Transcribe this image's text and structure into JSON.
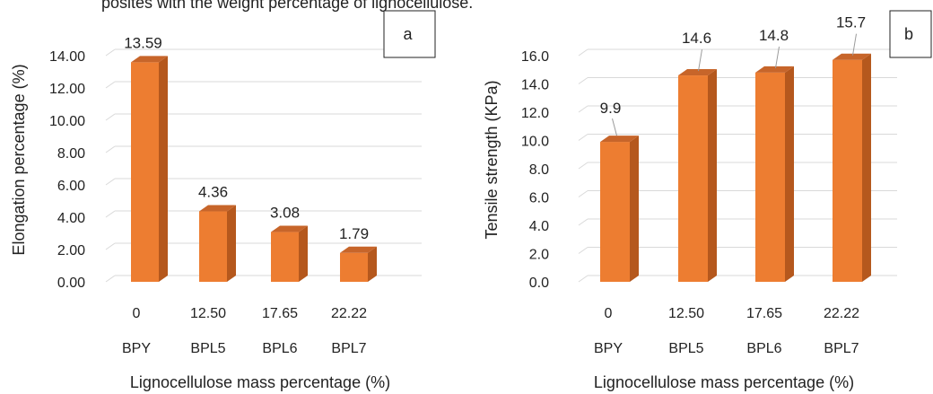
{
  "header_text": "posites with the weight percentage of lignocellulose.",
  "chart_data": [
    {
      "type": "bar",
      "panel_label": "a",
      "categories": [
        "0",
        "12.50",
        "17.65",
        "22.22"
      ],
      "sample_codes": [
        "BPY",
        "BPL5",
        "BPL6",
        "BPL7"
      ],
      "values": [
        13.59,
        4.36,
        3.08,
        1.79
      ],
      "data_labels": [
        "13.59",
        "4.36",
        "3.08",
        "1.79"
      ],
      "ylabel": "Elongation percentage (%)",
      "xlabel": "Lignocellulose mass percentage (%)",
      "ylim": [
        0,
        14
      ],
      "yticks": [
        "0.00",
        "2.00",
        "4.00",
        "6.00",
        "8.00",
        "10.00",
        "12.00",
        "14.00"
      ],
      "grid": true,
      "bar_style": "3d",
      "colors": {
        "front": "#ED7D31",
        "side": "#B5581D",
        "top": "#C7652A"
      }
    },
    {
      "type": "bar",
      "panel_label": "b",
      "categories": [
        "0",
        "12.50",
        "17.65",
        "22.22"
      ],
      "sample_codes": [
        "BPY",
        "BPL5",
        "BPL6",
        "BPL7"
      ],
      "values": [
        9.9,
        14.6,
        14.8,
        15.7
      ],
      "data_labels": [
        "9.9",
        "14.6",
        "14.8",
        "15.7"
      ],
      "ylabel": "Tensile strength (KPa)",
      "xlabel": "Lignocellulose mass percentage (%)",
      "ylim": [
        0,
        16
      ],
      "yticks": [
        "0.0",
        "2.0",
        "4.0",
        "6.0",
        "8.0",
        "10.0",
        "12.0",
        "14.0",
        "16.0"
      ],
      "grid": true,
      "bar_style": "3d",
      "colors": {
        "front": "#ED7D31",
        "side": "#B5581D",
        "top": "#C7652A"
      }
    }
  ]
}
